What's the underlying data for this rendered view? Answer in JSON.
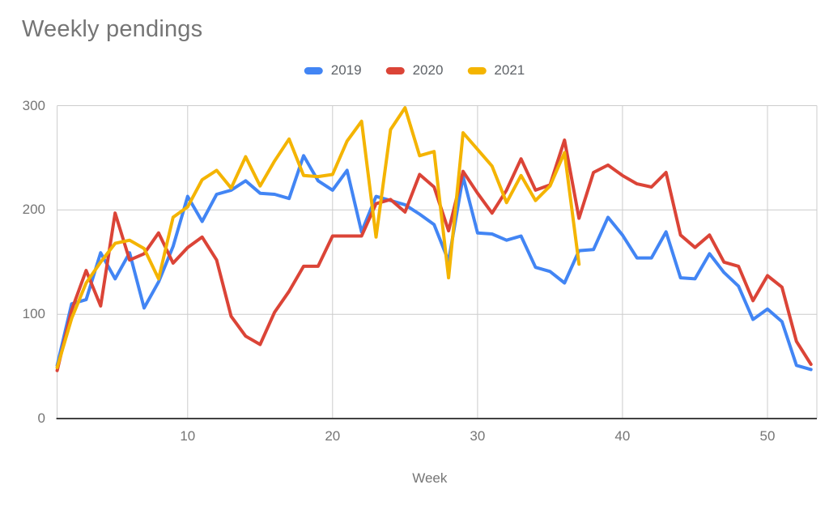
{
  "title": "Weekly pendings",
  "legend": {
    "items": [
      {
        "label": "2019",
        "color": "#4285F4"
      },
      {
        "label": "2020",
        "color": "#DB4437"
      },
      {
        "label": "2021",
        "color": "#F4B400"
      }
    ]
  },
  "colors": {
    "title_text": "#757575",
    "axis_text": "#757575",
    "legend_text": "#5f6368",
    "grid": "#cccccc",
    "axis_line": "#424242",
    "background": "#ffffff",
    "series_2019": "#4285F4",
    "series_2020": "#DB4437",
    "series_2021": "#F4B400"
  },
  "chart_data": {
    "type": "line",
    "title": "Weekly pendings",
    "xlabel": "Week",
    "ylabel": "",
    "xlim": [
      1,
      53
    ],
    "ylim": [
      0,
      300
    ],
    "x_ticks": [
      10,
      20,
      30,
      40,
      50
    ],
    "y_ticks": [
      0,
      100,
      200,
      300
    ],
    "grid": "both",
    "legend_position": "top",
    "x": [
      1,
      2,
      3,
      4,
      5,
      6,
      7,
      8,
      9,
      10,
      11,
      12,
      13,
      14,
      15,
      16,
      17,
      18,
      19,
      20,
      21,
      22,
      23,
      24,
      25,
      26,
      27,
      28,
      29,
      30,
      31,
      32,
      33,
      34,
      35,
      36,
      37,
      38,
      39,
      40,
      41,
      42,
      43,
      44,
      45,
      46,
      47,
      48,
      49,
      50,
      51,
      52,
      53
    ],
    "series": [
      {
        "name": "2019",
        "color": "#4285F4",
        "values": [
          51,
          110,
          114,
          159,
          134,
          159,
          106,
          131,
          165,
          213,
          189,
          215,
          219,
          228,
          216,
          215,
          211,
          252,
          228,
          219,
          238,
          179,
          213,
          209,
          205,
          196,
          186,
          151,
          232,
          178,
          177,
          171,
          175,
          145,
          141,
          130,
          161,
          162,
          193,
          176,
          154,
          154,
          179,
          135,
          134,
          158,
          140,
          127,
          95,
          105,
          93,
          51,
          47
        ]
      },
      {
        "name": "2020",
        "color": "#DB4437",
        "values": [
          46,
          104,
          142,
          108,
          197,
          152,
          158,
          178,
          149,
          164,
          174,
          152,
          98,
          79,
          71,
          102,
          122,
          146,
          146,
          175,
          175,
          175,
          206,
          210,
          198,
          234,
          222,
          180,
          237,
          216,
          197,
          219,
          249,
          219,
          224,
          267,
          192,
          236,
          243,
          233,
          225,
          222,
          236,
          176,
          164,
          176,
          150,
          146,
          113,
          137,
          126,
          74,
          52
        ]
      },
      {
        "name": "2021",
        "color": "#F4B400",
        "values": [
          49,
          96,
          130,
          150,
          168,
          171,
          163,
          134,
          193,
          203,
          229,
          238,
          221,
          251,
          223,
          247,
          268,
          233,
          232,
          234,
          266,
          285,
          174,
          277,
          298,
          252,
          256,
          135,
          274,
          258,
          242,
          207,
          233,
          209,
          223,
          255,
          148
        ]
      }
    ]
  }
}
